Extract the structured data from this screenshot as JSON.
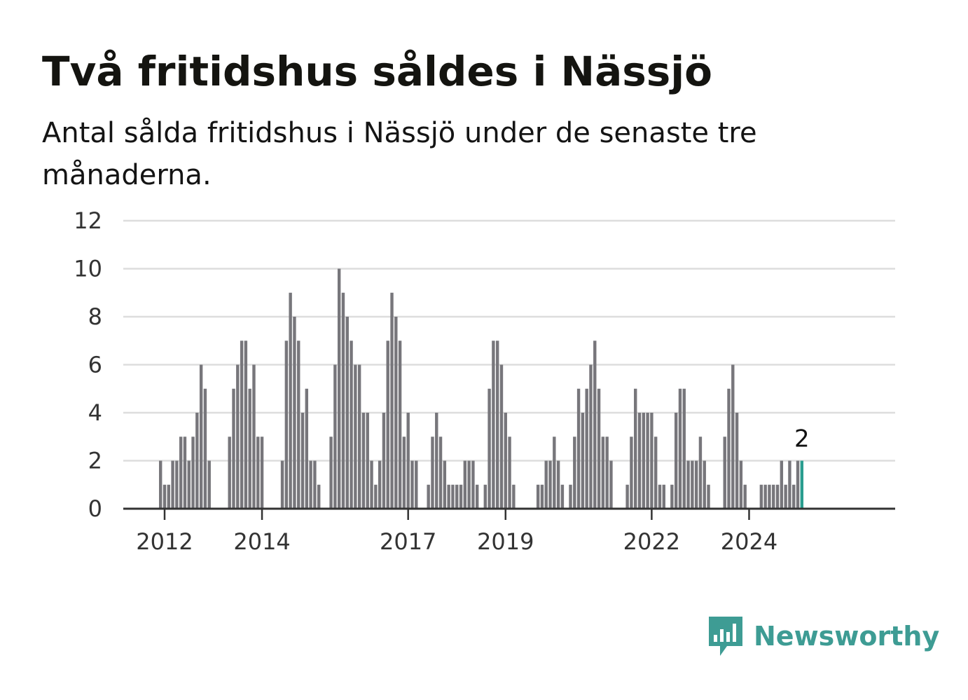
{
  "header": {
    "title": "Två fritidshus såldes i Nässjö",
    "subtitle": "Antal sålda fritidshus i Nässjö under de senaste tre månaderna."
  },
  "brand": {
    "name": "Newsworthy",
    "color": "#3e9c94",
    "icon": "chart-bubble-icon"
  },
  "chart_data": {
    "type": "bar",
    "title": "Två fritidshus såldes i Nässjö",
    "subtitle": "Antal sålda fritidshus i Nässjö under de senaste tre månaderna.",
    "xlabel": "",
    "ylabel": "",
    "x_start": "2011-12",
    "x_unit": "month",
    "ylim": [
      0,
      12
    ],
    "yticks": [
      0,
      2,
      4,
      6,
      8,
      10,
      12
    ],
    "xticks": [
      {
        "label": "2012",
        "month": "2012-01"
      },
      {
        "label": "2014",
        "month": "2014-01"
      },
      {
        "label": "2017",
        "month": "2017-01"
      },
      {
        "label": "2019",
        "month": "2019-01"
      },
      {
        "label": "2022",
        "month": "2022-01"
      },
      {
        "label": "2024",
        "month": "2024-01"
      }
    ],
    "grid": true,
    "bar_color": "#77767b",
    "highlight_color": "#2a9d8f",
    "highlight_label": "2",
    "values": [
      2,
      1,
      1,
      2,
      2,
      3,
      3,
      2,
      3,
      4,
      6,
      5,
      2,
      0,
      0,
      0,
      0,
      3,
      5,
      6,
      7,
      7,
      5,
      6,
      3,
      3,
      0,
      0,
      0,
      0,
      2,
      7,
      9,
      8,
      7,
      4,
      5,
      2,
      2,
      1,
      0,
      0,
      3,
      6,
      10,
      9,
      8,
      7,
      6,
      6,
      4,
      4,
      2,
      1,
      2,
      4,
      7,
      9,
      8,
      7,
      3,
      4,
      2,
      2,
      0,
      0,
      1,
      3,
      4,
      3,
      2,
      1,
      1,
      1,
      1,
      2,
      2,
      2,
      1,
      0,
      1,
      5,
      7,
      7,
      6,
      4,
      3,
      1,
      0,
      0,
      0,
      0,
      0,
      1,
      1,
      2,
      2,
      3,
      2,
      1,
      0,
      1,
      3,
      5,
      4,
      5,
      6,
      7,
      5,
      3,
      3,
      2,
      0,
      0,
      0,
      1,
      3,
      5,
      4,
      4,
      4,
      4,
      3,
      1,
      1,
      0,
      1,
      4,
      5,
      5,
      2,
      2,
      2,
      3,
      2,
      1,
      0,
      0,
      0,
      3,
      5,
      6,
      4,
      2,
      1,
      0,
      0,
      0,
      1,
      1,
      1,
      1,
      1,
      2,
      1,
      2,
      1,
      2,
      2
    ]
  }
}
